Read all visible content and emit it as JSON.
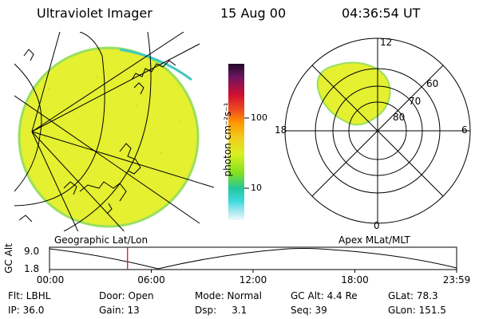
{
  "header": {
    "instrument": "Ultraviolet Imager",
    "date": "15 Aug 00",
    "time": "04:36:54 UT"
  },
  "colorbar": {
    "unit_label": "photon cm⁻²s⁻¹",
    "ticks": [
      "100",
      "10"
    ],
    "colors": [
      "#3b0a3b",
      "#8b1a6b",
      "#d01030",
      "#f04020",
      "#ff9a00",
      "#f0d020",
      "#d8f020",
      "#80e020",
      "#20c8a0",
      "#40d8e0",
      "#a0e8f0",
      "#e8f4f8"
    ]
  },
  "polar_plot": {
    "clock_labels": {
      "top": "12",
      "left": "18",
      "right": "6",
      "bottom": "0"
    },
    "lat_labels": [
      "60",
      "70",
      "80"
    ]
  },
  "timeline": {
    "ylabel": "GC Alt",
    "ymax": "9.0",
    "ymin": "1.8",
    "left_label": "Geographic Lat/Lon",
    "right_label": "Apex MLat/MLT",
    "x_ticks": [
      "00:00",
      "06:00",
      "12:00",
      "18:00",
      "23:59"
    ],
    "current_time_hours": 4.6
  },
  "info": {
    "row1": [
      "Flt: LBHL",
      "Door: Open",
      "Mode: Normal",
      "GC Alt: 4.4 Re",
      "GLat: 78.3"
    ],
    "row2": [
      "IP: 36.0",
      "Gain: 13",
      "Dsp:     3.1",
      "Seq: 39",
      "GLon: 151.5"
    ]
  },
  "colors": {
    "aurora_fill": "#e4f030",
    "aurora_edge": "#40c8c0",
    "marker": "#e00000"
  }
}
